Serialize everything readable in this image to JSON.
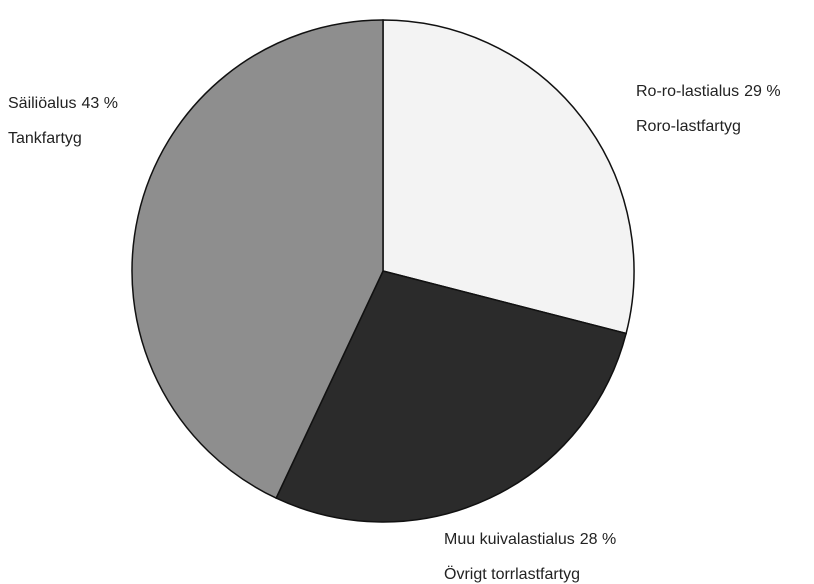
{
  "chart_data": {
    "type": "pie",
    "categories": [
      "Ro-ro-lastialus",
      "Muu kuivalastialus",
      "Säiliöalus"
    ],
    "categories_sv": [
      "Roro-lastfartyg",
      "Övrigt torrlastfartyg",
      "Tankfartyg"
    ],
    "values": [
      29,
      28,
      43
    ],
    "value_labels": [
      "29 %",
      "28 %",
      "43 %"
    ],
    "colors": [
      "#f3f3f3",
      "#2b2b2b",
      "#8e8e8e"
    ]
  }
}
